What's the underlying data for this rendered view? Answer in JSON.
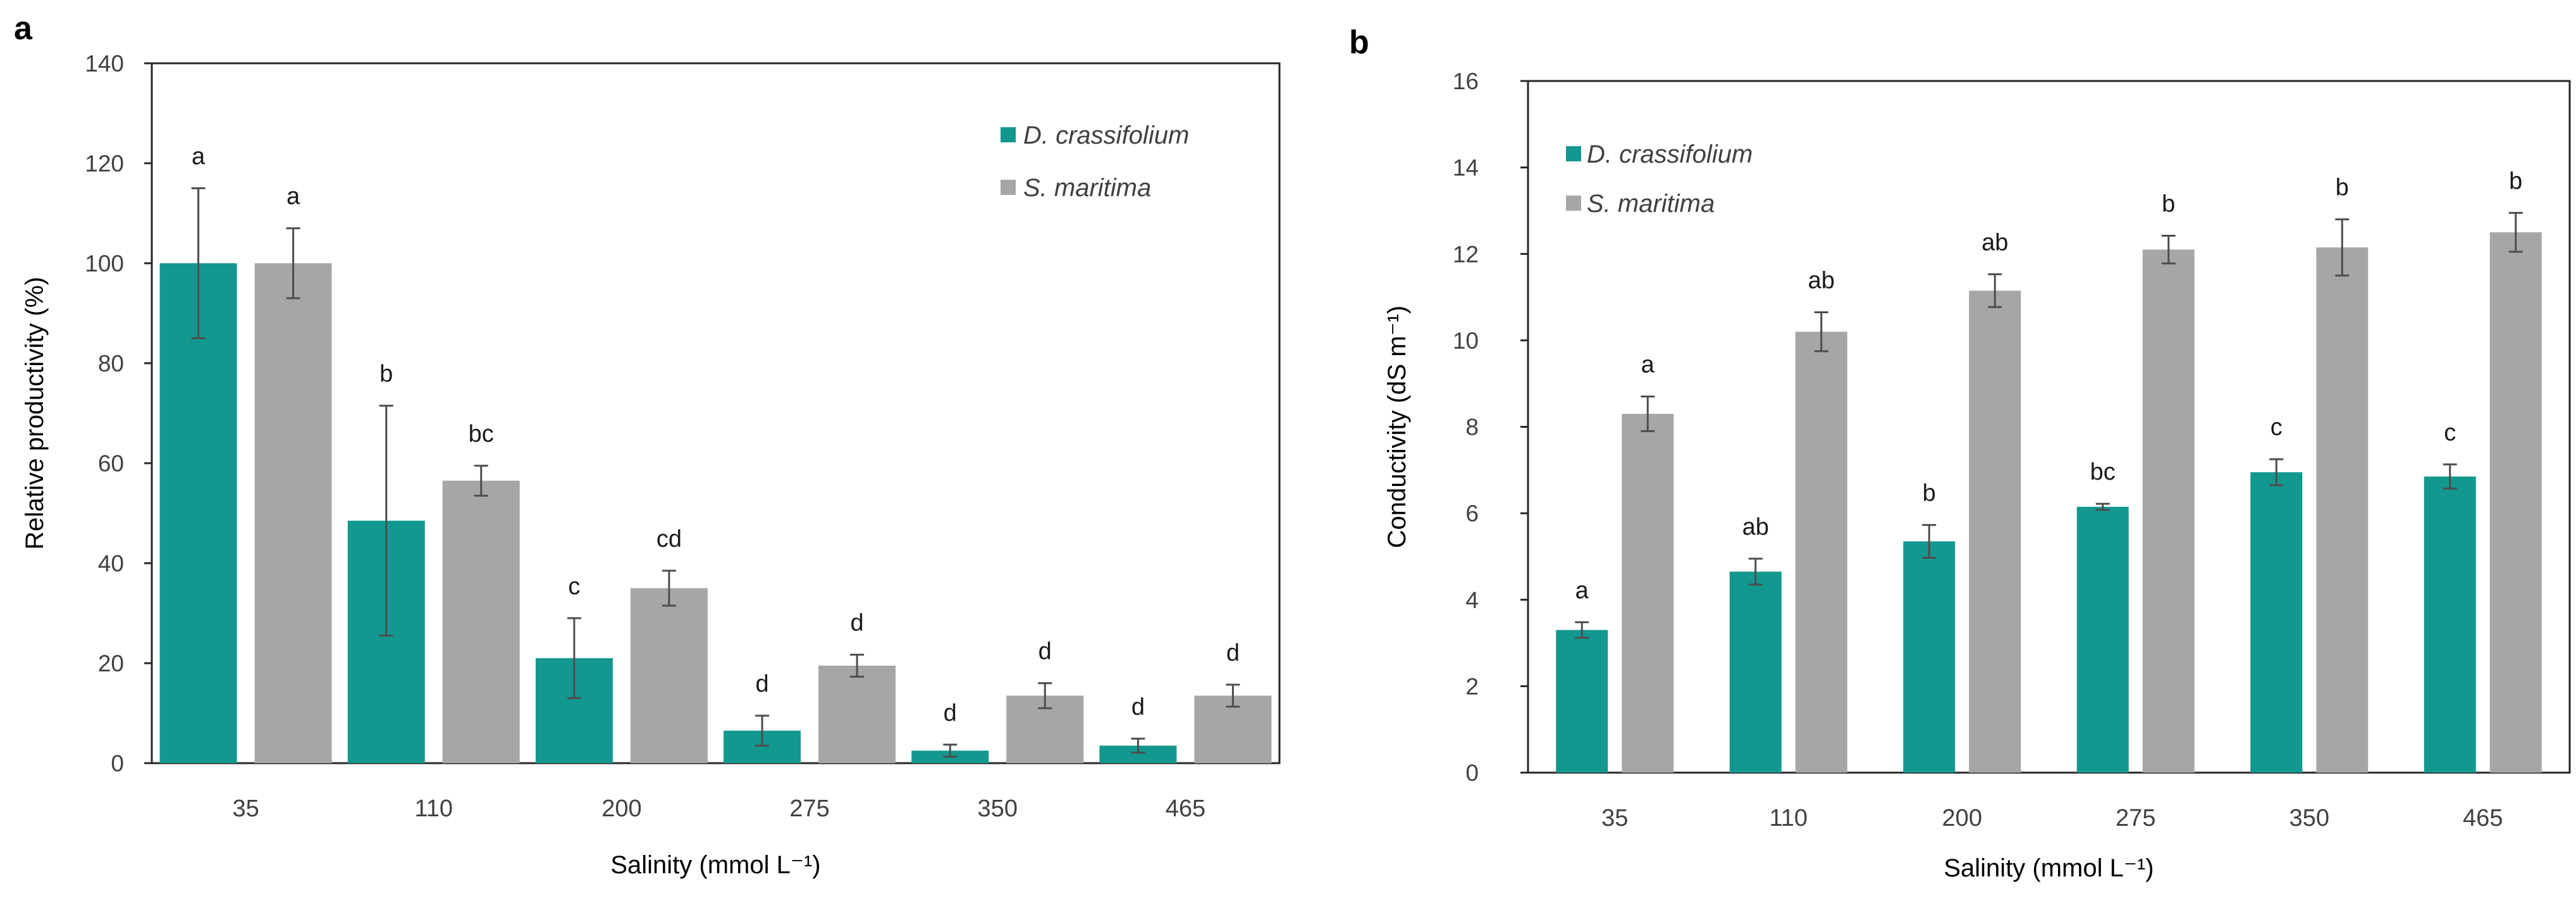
{
  "colors": {
    "series_1": "#12988f",
    "series_2": "#a6a6a6",
    "axis": "#262626",
    "error_bar": "#4d4d4d",
    "text": "#404040"
  },
  "chart_data": [
    {
      "panel_label": "a",
      "type": "bar",
      "categories": [
        "35",
        "110",
        "200",
        "275",
        "350",
        "465"
      ],
      "xlabel": "Salinity (mmol L⁻¹)",
      "ylabel": "Relative productivity (%)",
      "ylim": [
        0,
        140
      ],
      "yticks": [
        0,
        20,
        40,
        60,
        80,
        100,
        120,
        140
      ],
      "legend_position": "top-right",
      "grid": false,
      "series": [
        {
          "name": "D. crassifolium",
          "values": [
            100,
            48.5,
            21,
            6.5,
            2.5,
            3.5
          ],
          "errors": [
            15,
            23,
            8,
            3,
            1.2,
            1.4
          ],
          "letters": [
            "a",
            "b",
            "c",
            "d",
            "d",
            "d"
          ]
        },
        {
          "name": "S. maritima",
          "values": [
            100,
            56.5,
            35,
            19.5,
            13.5,
            13.5
          ],
          "errors": [
            7,
            3,
            3.5,
            2.2,
            2.5,
            2.2
          ],
          "letters": [
            "a",
            "bc",
            "cd",
            "d",
            "d",
            "d"
          ]
        }
      ]
    },
    {
      "panel_label": "b",
      "type": "bar",
      "categories": [
        "35",
        "110",
        "200",
        "275",
        "350",
        "465"
      ],
      "xlabel": "Salinity (mmol L⁻¹)",
      "ylabel": "Conductivity (dS m⁻¹)",
      "ylim": [
        0,
        16
      ],
      "yticks": [
        0,
        2,
        4,
        6,
        8,
        10,
        12,
        14,
        16
      ],
      "legend_position": "top-left",
      "grid": false,
      "series": [
        {
          "name": "D. crassifolium",
          "values": [
            3.3,
            4.65,
            5.35,
            6.15,
            6.95,
            6.85
          ],
          "errors": [
            0.18,
            0.3,
            0.38,
            0.07,
            0.3,
            0.28
          ],
          "letters": [
            "a",
            "ab",
            "b",
            "bc",
            "c",
            "c"
          ]
        },
        {
          "name": "S. maritima",
          "values": [
            8.3,
            10.2,
            11.15,
            12.1,
            12.15,
            12.5
          ],
          "errors": [
            0.4,
            0.45,
            0.38,
            0.32,
            0.65,
            0.45
          ],
          "letters": [
            "a",
            "ab",
            "ab",
            "b",
            "b",
            "b"
          ]
        }
      ]
    }
  ]
}
